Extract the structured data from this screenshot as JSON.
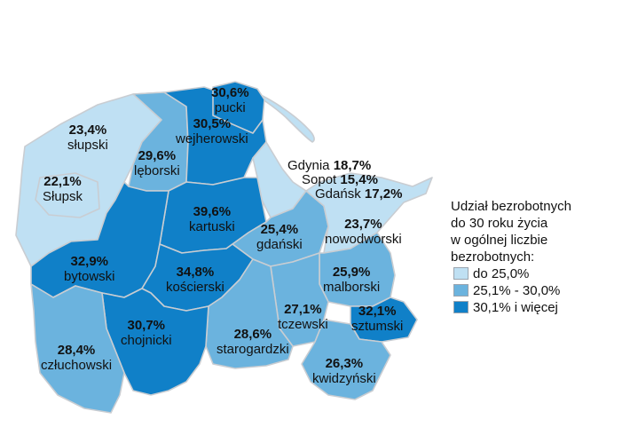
{
  "colors": {
    "low": "#bfe0f3",
    "mid": "#6bb3de",
    "high": "#1080c8",
    "border": "#c9cdd2"
  },
  "legend": {
    "title_lines": [
      "Udział bezrobotnych",
      "do 30 roku życia",
      "w ogólnej liczbie",
      "bezrobotnych:"
    ],
    "items": [
      {
        "label": "do 25,0%",
        "color": "#bfe0f3"
      },
      {
        "label": "25,1% - 30,0%",
        "color": "#6bb3de"
      },
      {
        "label": "30,1% i więcej",
        "color": "#1080c8"
      }
    ]
  },
  "regions": [
    {
      "name": "pucki",
      "value": "30,6%"
    },
    {
      "name": "słupski",
      "value": "23,4%"
    },
    {
      "name": "wejherowski",
      "value": "30,5%"
    },
    {
      "name": "lęborski",
      "value": "29,6%"
    },
    {
      "name": "Słupsk",
      "value": "22,1%"
    },
    {
      "name": "kartuski",
      "value": "39,6%"
    },
    {
      "name": "gdański",
      "value": "25,4%"
    },
    {
      "name": "nowodworski",
      "value": "23,7%"
    },
    {
      "name": "bytowski",
      "value": "32,9%"
    },
    {
      "name": "kościerski",
      "value": "34,8%"
    },
    {
      "name": "malborski",
      "value": "25,9%"
    },
    {
      "name": "tczewski",
      "value": "27,1%"
    },
    {
      "name": "sztumski",
      "value": "32,1%"
    },
    {
      "name": "chojnicki",
      "value": "30,7%"
    },
    {
      "name": "człuchowski",
      "value": "28,4%"
    },
    {
      "name": "starogardzki",
      "value": "28,6%"
    },
    {
      "name": "kwidzyński",
      "value": "26,3%"
    }
  ],
  "cities": [
    {
      "name": "Gdynia",
      "value": "18,7%"
    },
    {
      "name": "Sopot",
      "value": "15,4%"
    },
    {
      "name": "Gdańsk",
      "value": "17,2%"
    }
  ]
}
